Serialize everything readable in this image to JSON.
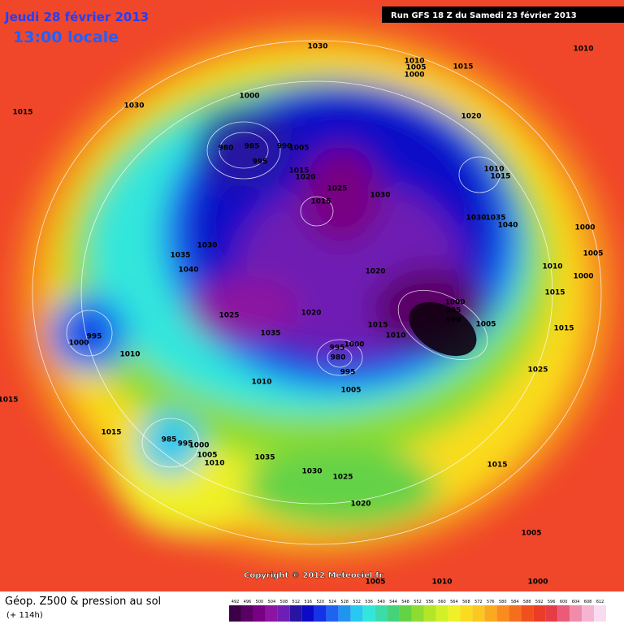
{
  "header": {
    "date": "Jeudi 28 février 2013",
    "time": "13:00 locale",
    "run": "Run GFS 18 Z du Samedi 23 février 2013"
  },
  "copyright": "Copyright © 2012 Meteociel.fr",
  "footer": {
    "title": "Géop. Z500 & pression au sol",
    "lead": "(+ 114h)"
  },
  "legend": {
    "values": [
      492,
      496,
      500,
      504,
      508,
      512,
      516,
      520,
      524,
      528,
      532,
      536,
      540,
      544,
      548,
      552,
      556,
      560,
      564,
      568,
      572,
      576,
      580,
      584,
      588,
      592,
      596,
      600,
      604,
      608,
      612
    ],
    "colors": [
      "#3c0046",
      "#5a0064",
      "#780082",
      "#8c14a0",
      "#6e1eb4",
      "#2814a0",
      "#0a0ac8",
      "#1432e6",
      "#1e64f0",
      "#1e96f0",
      "#28c8f0",
      "#32e6dc",
      "#3cdcaa",
      "#46d278",
      "#64d246",
      "#8cdc32",
      "#b4e628",
      "#d2f028",
      "#f0f028",
      "#fadc1e",
      "#fac81e",
      "#faaa1e",
      "#fa8c1e",
      "#f56e1e",
      "#f0501e",
      "#eb3c28",
      "#e63c46",
      "#eb5a78",
      "#f08caa",
      "#f5b4d2",
      "#fadcf0"
    ]
  },
  "isobars": [
    "1030",
    "1010",
    "1005",
    "1000",
    "1015",
    "1010",
    "1015",
    "1030",
    "1000",
    "980",
    "985",
    "990",
    "995",
    "1005",
    "1015",
    "1020",
    "1025",
    "1015",
    "1030",
    "1020",
    "1010",
    "1015",
    "1030",
    "1035",
    "1040",
    "1000",
    "1005",
    "1010",
    "1000",
    "1015",
    "1030",
    "1035",
    "1040",
    "1020",
    "1025",
    "1020",
    "1000",
    "995",
    "990",
    "1005",
    "1015",
    "1015",
    "1010",
    "1035",
    "995",
    "1000",
    "1010",
    "1000",
    "995",
    "980",
    "995",
    "1010",
    "1005",
    "1025",
    "1015",
    "1015",
    "985",
    "995",
    "1000",
    "1005",
    "1010",
    "1035",
    "1030",
    "1025",
    "1015",
    "1020",
    "1005",
    "1000",
    "1010",
    "1005"
  ]
}
